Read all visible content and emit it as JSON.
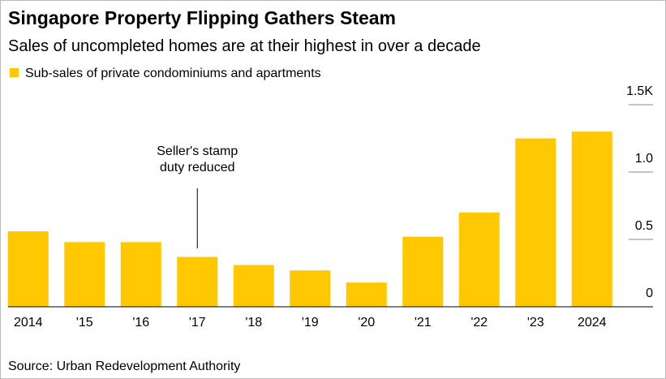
{
  "chart_data": {
    "type": "bar",
    "title": "Singapore Property Flipping Gathers Steam",
    "subtitle": "Sales of uncompleted homes are at their highest in over a decade",
    "legend": "Sub-sales of private condominiums and apartments",
    "source": "Source: Urban Redevelopment Authority",
    "annotation": [
      "Seller's stamp",
      "duty reduced"
    ],
    "categories": [
      "2014",
      "'15",
      "'16",
      "'17",
      "'18",
      "'19",
      "'20",
      "'21",
      "'22",
      "'23",
      "2024"
    ],
    "values": [
      0.56,
      0.48,
      0.48,
      0.37,
      0.31,
      0.27,
      0.18,
      0.52,
      0.7,
      1.25,
      1.3
    ],
    "color": "#ffc800",
    "ylim": [
      0,
      1.5
    ],
    "yticks": [
      0,
      0.5,
      {
        "value": 1,
        "label": "1.0"
      },
      {
        "value": 1.5,
        "label": "1.5K"
      }
    ]
  }
}
